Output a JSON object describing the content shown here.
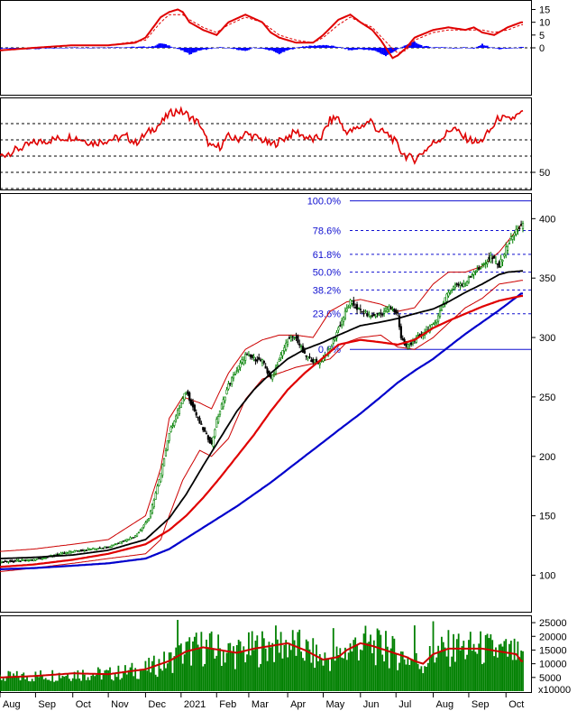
{
  "chart_data": {
    "type": "stock-technical-chart",
    "x_ticks": [
      "Aug",
      "Sep",
      "Oct",
      "Nov",
      "Dec",
      "2021",
      "Feb",
      "Mar",
      "Apr",
      "May",
      "Jun",
      "Jul",
      "Aug",
      "Sep",
      "Oct"
    ],
    "x_ticks_pos": [
      0,
      21,
      43,
      64,
      86,
      107,
      128,
      147,
      170,
      191,
      213,
      234,
      256,
      277,
      299
    ],
    "price_panel": {
      "ylim": [
        70,
        420
      ],
      "y_ticks": [
        100,
        150,
        200,
        250,
        300,
        350,
        400
      ],
      "bars": 310,
      "anchors": {
        "idx": [
          0,
          20,
          43,
          64,
          80,
          88,
          95,
          100,
          110,
          118,
          125,
          128,
          135,
          145,
          155,
          160,
          170,
          175,
          180,
          188,
          195,
          200,
          207,
          213,
          220,
          225,
          230,
          235,
          237,
          240,
          245,
          256,
          260,
          265,
          270,
          275,
          280,
          285,
          290,
          295,
          300,
          305,
          308
        ],
        "close": [
          111,
          113,
          120,
          124,
          133,
          148,
          185,
          220,
          255,
          228,
          210,
          230,
          260,
          285,
          280,
          265,
          298,
          300,
          285,
          278,
          290,
          308,
          330,
          322,
          318,
          320,
          325,
          320,
          300,
          292,
          298,
          310,
          322,
          338,
          345,
          345,
          356,
          360,
          368,
          360,
          378,
          390,
          394
        ]
      },
      "ma_fast": {
        "color": "#000000",
        "idx": [
          0,
          20,
          43,
          64,
          86,
          100,
          110,
          120,
          130,
          140,
          150,
          160,
          170,
          180,
          191,
          200,
          213,
          225,
          235,
          245,
          256,
          265,
          275,
          285,
          295,
          300,
          308
        ],
        "val": [
          114,
          115,
          117,
          121,
          130,
          148,
          168,
          192,
          215,
          238,
          256,
          270,
          282,
          290,
          296,
          302,
          310,
          313,
          316,
          320,
          324,
          330,
          338,
          345,
          353,
          355,
          356
        ]
      },
      "ma_mid": {
        "color": "#e00000",
        "idx": [
          0,
          20,
          43,
          64,
          86,
          100,
          110,
          120,
          130,
          140,
          150,
          160,
          170,
          180,
          191,
          200,
          213,
          225,
          235,
          245,
          256,
          265,
          275,
          285,
          295,
          308
        ],
        "val": [
          107,
          109,
          113,
          118,
          126,
          138,
          150,
          165,
          182,
          200,
          218,
          238,
          256,
          270,
          283,
          294,
          298,
          296,
          294,
          298,
          308,
          314,
          320,
          326,
          331,
          335
        ]
      },
      "ma_slow": {
        "color": "#0000cc",
        "idx": [
          0,
          20,
          43,
          64,
          86,
          100,
          110,
          120,
          130,
          140,
          150,
          160,
          170,
          180,
          191,
          200,
          213,
          225,
          235,
          245,
          256,
          265,
          275,
          285,
          295,
          308
        ],
        "val": [
          105,
          106,
          108,
          110,
          114,
          122,
          131,
          140,
          149,
          158,
          168,
          178,
          189,
          200,
          212,
          222,
          236,
          250,
          262,
          272,
          282,
          292,
          303,
          313,
          323,
          337
        ]
      },
      "band_upper": {
        "color": "#cc0000",
        "idx": [
          0,
          20,
          43,
          64,
          86,
          95,
          100,
          108,
          118,
          125,
          135,
          145,
          155,
          165,
          175,
          185,
          195,
          205,
          213,
          225,
          235,
          245,
          256,
          265,
          275,
          285,
          295,
          308
        ],
        "val": [
          120,
          122,
          126,
          130,
          150,
          190,
          232,
          250,
          245,
          240,
          270,
          290,
          298,
          302,
          302,
          300,
          322,
          330,
          332,
          328,
          322,
          325,
          345,
          355,
          355,
          360,
          372,
          395
        ]
      },
      "band_lower": {
        "color": "#cc0000",
        "idx": [
          0,
          20,
          43,
          64,
          86,
          95,
          100,
          108,
          118,
          125,
          135,
          145,
          155,
          165,
          175,
          185,
          195,
          205,
          213,
          225,
          235,
          245,
          256,
          265,
          275,
          285,
          295,
          308
        ],
        "val": [
          103,
          106,
          110,
          114,
          118,
          130,
          150,
          180,
          205,
          200,
          215,
          248,
          265,
          270,
          275,
          278,
          282,
          296,
          300,
          302,
          292,
          290,
          300,
          312,
          325,
          333,
          345,
          348
        ]
      },
      "fib": {
        "levels": [
          "100.0%",
          "78.6%",
          "61.8%",
          "50.0%",
          "38.2%",
          "23.6%",
          "0.0%"
        ],
        "values": [
          415,
          390,
          370,
          355,
          340,
          320,
          290
        ],
        "colors": [
          "#1010d0",
          "#1010d0",
          "#1010d0",
          "#1010d0",
          "#1010d0",
          "#1010d0",
          "#1010d0"
        ]
      }
    },
    "macd_panel": {
      "ylim": [
        -18,
        18
      ],
      "y_ticks": [
        15,
        10,
        5,
        0
      ],
      "macd": {
        "color": "#e00000",
        "idx": [
          0,
          20,
          43,
          64,
          80,
          86,
          95,
          100,
          105,
          108,
          112,
          120,
          128,
          135,
          145,
          155,
          160,
          165,
          175,
          185,
          191,
          200,
          207,
          213,
          220,
          225,
          230,
          232,
          235,
          240,
          245,
          256,
          265,
          275,
          280,
          285,
          292,
          300,
          308
        ],
        "val": [
          -1,
          0,
          1,
          1,
          2,
          4,
          12,
          14,
          15,
          14,
          10,
          7,
          5,
          10,
          13,
          10,
          6,
          4,
          2,
          2,
          5,
          11,
          13,
          10,
          7,
          3,
          -2,
          -4,
          -3,
          0,
          4,
          7,
          8,
          7,
          8,
          6,
          5,
          8,
          10
        ]
      },
      "signal": {
        "color": "#e00000",
        "idx": [
          0,
          20,
          43,
          64,
          86,
          95,
          100,
          108,
          112,
          120,
          128,
          135,
          145,
          155,
          165,
          175,
          185,
          191,
          200,
          207,
          213,
          220,
          230,
          235,
          240,
          245,
          256,
          265,
          275,
          285,
          292,
          300,
          308
        ],
        "val": [
          -1,
          0,
          1,
          1,
          3,
          10,
          13,
          13,
          11,
          8,
          6,
          9,
          12,
          10,
          5,
          3,
          2,
          4,
          9,
          12,
          10,
          8,
          1,
          -2,
          -1,
          3,
          6,
          7,
          7,
          7,
          6,
          7,
          9
        ]
      },
      "hist": {
        "color": "#0000ff",
        "idx": [
          0,
          20,
          43,
          64,
          80,
          90,
          95,
          100,
          108,
          112,
          118,
          125,
          130,
          140,
          145,
          150,
          160,
          165,
          170,
          178,
          185,
          191,
          200,
          207,
          213,
          222,
          228,
          235,
          240,
          245,
          250,
          256,
          262,
          268,
          275,
          280,
          285,
          290,
          295,
          300,
          308
        ],
        "val": [
          -0.3,
          -0.5,
          0.1,
          0.2,
          0.3,
          0.5,
          1.8,
          0.9,
          -1.2,
          -2.5,
          -1,
          -0.3,
          0.2,
          -0.6,
          -1.4,
          0.2,
          -1,
          -2.4,
          -1,
          0.5,
          0.8,
          1.1,
          0.4,
          -1,
          -0.5,
          -1.2,
          -3.2,
          -0.6,
          1.1,
          2.3,
          0.7,
          0.2,
          0.3,
          -0.2,
          0.2,
          -0.4,
          1.4,
          0.2,
          -0.5,
          -0.3,
          0.2
        ]
      }
    },
    "rsi_panel": {
      "ylim": [
        40,
        95
      ],
      "y_ticks": [
        50
      ],
      "levels": [
        80,
        70,
        60,
        50,
        40
      ],
      "rsi": {
        "color": "#e00000",
        "idx": [
          0,
          10,
          20,
          30,
          43,
          55,
          64,
          75,
          80,
          88,
          95,
          100,
          105,
          110,
          115,
          118,
          121,
          125,
          130,
          135,
          140,
          145,
          150,
          155,
          160,
          163,
          170,
          175,
          180,
          185,
          190,
          195,
          200,
          203,
          207,
          213,
          219,
          223,
          228,
          231,
          234,
          237,
          240,
          245,
          256,
          262,
          268,
          273,
          278,
          283,
          290,
          295,
          300,
          308
        ],
        "val": [
          60,
          64,
          68,
          70,
          72,
          68,
          70,
          72,
          68,
          75,
          80,
          86,
          88,
          86,
          82,
          80,
          72,
          65,
          66,
          72,
          70,
          74,
          72,
          70,
          67,
          68,
          72,
          75,
          72,
          70,
          72,
          82,
          84,
          76,
          75,
          78,
          82,
          76,
          74,
          72,
          68,
          63,
          60,
          58,
          68,
          72,
          78,
          72,
          70,
          68,
          76,
          84,
          82,
          86
        ]
      }
    },
    "volume_panel": {
      "ylim": [
        0,
        27000
      ],
      "y_ticks": [
        25000,
        20000,
        15000,
        10000,
        5000
      ],
      "unit_label": "x10000",
      "ma": {
        "color": "#cc0000",
        "idx": [
          0,
          20,
          43,
          64,
          86,
          100,
          110,
          120,
          130,
          140,
          150,
          160,
          170,
          180,
          191,
          200,
          205,
          213,
          220,
          230,
          240,
          245,
          250,
          256,
          265,
          275,
          285,
          295,
          305,
          308
        ],
        "val": [
          5000,
          5500,
          6500,
          6200,
          8000,
          11000,
          14500,
          16000,
          15000,
          14000,
          15500,
          16500,
          17500,
          15000,
          11500,
          12500,
          15000,
          17500,
          16500,
          14500,
          12500,
          11000,
          10000,
          13500,
          15500,
          15500,
          15500,
          14500,
          13500,
          11000
        ]
      },
      "bars_color": "#008000",
      "peaks": {
        "idx": [
          105,
          110,
          160,
          197,
          228,
          245,
          256,
          270,
          295
        ],
        "val": [
          26000,
          18000,
          16000,
          23000,
          22000,
          24000,
          25500,
          19000,
          17000
        ]
      }
    }
  }
}
